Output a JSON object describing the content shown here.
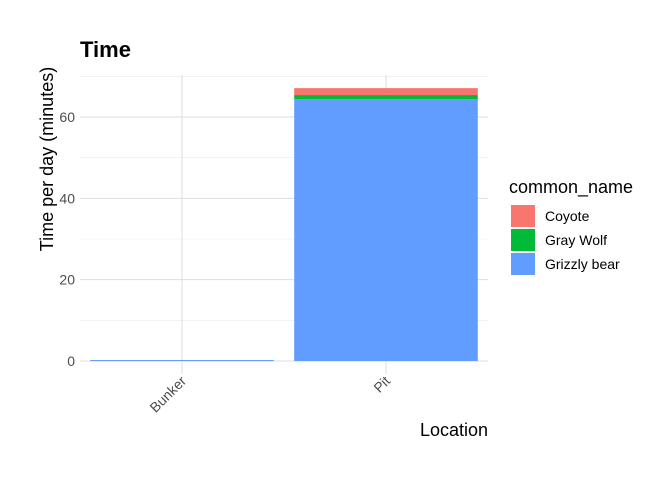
{
  "chart_data": {
    "type": "bar",
    "stacked": true,
    "title": "Time",
    "xlabel": "Location",
    "ylabel": "Time per day (minutes)",
    "categories": [
      "Bunker",
      "Pit"
    ],
    "series": [
      {
        "name": "Coyote",
        "color": "#F8766D",
        "values": [
          0,
          1.7
        ]
      },
      {
        "name": "Gray Wolf",
        "color": "#00BA38",
        "values": [
          0,
          1.0
        ]
      },
      {
        "name": "Grizzly bear",
        "color": "#619CFF",
        "values": [
          0.15,
          64.4
        ]
      }
    ],
    "stack_order_bottom_to_top": [
      "Grizzly bear",
      "Gray Wolf",
      "Coyote"
    ],
    "ylim": [
      0,
      70
    ],
    "yticks": [
      0,
      20,
      40,
      60
    ],
    "x_tick_rotation": 45,
    "grid": true,
    "legend": {
      "title": "common_name",
      "placement": "right",
      "entries": [
        "Coyote",
        "Gray Wolf",
        "Grizzly bear"
      ]
    }
  }
}
